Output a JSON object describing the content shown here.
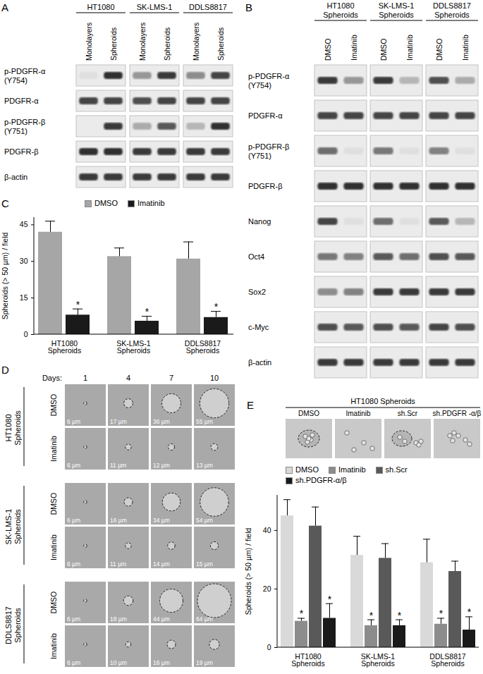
{
  "chart_data": [
    {
      "type": "bar",
      "categories": [
        "HT1080 Spheroids",
        "SK-LMS-1 Spheroids",
        "DDLS8817 Spheroids"
      ],
      "y_label": "Spheroids (> 50 µm) / field",
      "ylim": [
        0,
        48
      ],
      "yticks": [
        0,
        15,
        30,
        45
      ],
      "legend": "top",
      "series": [
        {
          "name": "DMSO",
          "color": "#a6a6a6",
          "values": [
            42,
            32,
            31
          ],
          "errors": [
            4.5,
            3.5,
            7
          ]
        },
        {
          "name": "Imatinib",
          "color": "#1a1a1a",
          "values": [
            8,
            5.5,
            7
          ],
          "errors": [
            2.5,
            2,
            2.5
          ],
          "annotations": [
            "*",
            "*",
            "*"
          ]
        }
      ]
    },
    {
      "type": "bar",
      "categories": [
        "HT1080 Spheroids",
        "SK-LMS-1 Spheroids",
        "DDLS8817 Spheroids"
      ],
      "y_label": "Spheroids (> 50 µm) / field",
      "ylim": [
        0,
        52
      ],
      "yticks": [
        0,
        20,
        40
      ],
      "legend": "top",
      "series": [
        {
          "name": "DMSO",
          "color": "#d9d9d9",
          "values": [
            45,
            31.5,
            29
          ],
          "errors": [
            5.5,
            6.5,
            8
          ]
        },
        {
          "name": "Imatinib",
          "color": "#8c8c8c",
          "values": [
            9,
            7.5,
            8
          ],
          "errors": [
            1,
            2,
            2
          ],
          "annotations": [
            "*",
            "*",
            "*"
          ]
        },
        {
          "name": "sh.Scr",
          "color": "#595959",
          "values": [
            41.5,
            30.5,
            26
          ],
          "errors": [
            6.5,
            5,
            3.5
          ]
        },
        {
          "name": "sh.PDGFR-α/β",
          "color": "#1a1a1a",
          "values": [
            10,
            7.5,
            6
          ],
          "errors": [
            5,
            2,
            4.5
          ],
          "annotations": [
            "*",
            "*",
            "*"
          ]
        }
      ]
    }
  ],
  "figure": {
    "A": {
      "letter": "A",
      "groups": [
        {
          "name": "HT1080",
          "lanes": [
            "Monolayers",
            "Spheroids"
          ]
        },
        {
          "name": "SK-LMS-1",
          "lanes": [
            "Monolayers",
            "Spheroids"
          ]
        },
        {
          "name": "DDLS8817",
          "lanes": [
            "Monolayers",
            "Spheroids"
          ]
        }
      ],
      "rows": [
        {
          "label": "p-PDGFR-α (Y754)",
          "intensity": [
            0.05,
            0.9,
            0.4,
            0.85,
            0.45,
            0.8
          ]
        },
        {
          "label": "PDGFR-α",
          "intensity": [
            0.8,
            0.8,
            0.75,
            0.8,
            0.8,
            0.8
          ]
        },
        {
          "label": "p-PDGFR-β (Y751)",
          "intensity": [
            0.0,
            0.85,
            0.3,
            0.7,
            0.25,
            0.9
          ]
        },
        {
          "label": "PDGFR-β",
          "intensity": [
            0.9,
            0.9,
            0.85,
            0.85,
            0.85,
            0.85
          ]
        },
        {
          "label": "β-actin",
          "intensity": [
            0.85,
            0.85,
            0.85,
            0.85,
            0.85,
            0.85
          ]
        }
      ]
    },
    "B": {
      "letter": "B",
      "groups": [
        {
          "name": "HT1080 Spheroids",
          "lanes": [
            "DMSO",
            "Imatinib"
          ]
        },
        {
          "name": "SK-LMS-1 Spheroids",
          "lanes": [
            "DMSO",
            "Imatinib"
          ]
        },
        {
          "name": "DDLS8817 Spheroids",
          "lanes": [
            "DMSO",
            "Imatinib"
          ]
        }
      ],
      "rows": [
        {
          "label": "p-PDGFR-α (Y754)",
          "intensity": [
            0.85,
            0.4,
            0.85,
            0.25,
            0.75,
            0.3
          ]
        },
        {
          "label": "PDGFR-α",
          "intensity": [
            0.8,
            0.8,
            0.8,
            0.8,
            0.8,
            0.8
          ]
        },
        {
          "label": "p-PDGFR-β (Y751)",
          "intensity": [
            0.6,
            0.05,
            0.55,
            0.05,
            0.5,
            0.05
          ]
        },
        {
          "label": "PDGFR-β",
          "intensity": [
            0.9,
            0.9,
            0.9,
            0.9,
            0.9,
            0.9
          ]
        },
        {
          "label": "Nanog",
          "intensity": [
            0.8,
            0.05,
            0.6,
            0.05,
            0.7,
            0.25
          ]
        },
        {
          "label": "Oct4",
          "intensity": [
            0.55,
            0.5,
            0.7,
            0.6,
            0.75,
            0.7
          ]
        },
        {
          "label": "Sox2",
          "intensity": [
            0.45,
            0.5,
            0.85,
            0.85,
            0.85,
            0.85
          ]
        },
        {
          "label": "c-Myc",
          "intensity": [
            0.75,
            0.7,
            0.75,
            0.7,
            0.8,
            0.75
          ]
        },
        {
          "label": "β-actin",
          "intensity": [
            0.85,
            0.85,
            0.85,
            0.85,
            0.85,
            0.85
          ]
        }
      ]
    },
    "C": {
      "letter": "C"
    },
    "D": {
      "letter": "D",
      "days_label": "Days:",
      "days": [
        1,
        4,
        7,
        10
      ],
      "groups": [
        {
          "name": "HT1080 Spheroids",
          "rows": [
            {
              "treatment": "DMSO",
              "diameters": [
                6,
                17,
                36,
                55
              ],
              "diameter_labels": [
                "6 µm",
                "17 µm",
                "36 µm",
                "55 µm"
              ]
            },
            {
              "treatment": "Imatinib",
              "diameters": [
                6,
                11,
                12,
                13
              ],
              "diameter_labels": [
                "6 µm",
                "11 µm",
                "12 µm",
                "13 µm"
              ]
            }
          ]
        },
        {
          "name": "SK-LMS-1 Spheroids",
          "rows": [
            {
              "treatment": "DMSO",
              "diameters": [
                6,
                16,
                34,
                54
              ],
              "diameter_labels": [
                "6 µm",
                "16 µm",
                "34 µm",
                "54 µm"
              ]
            },
            {
              "treatment": "Imatinib",
              "diameters": [
                6,
                11,
                14,
                15
              ],
              "diameter_labels": [
                "6 µm",
                "11 µm",
                "14 µm",
                "15 µm"
              ]
            }
          ]
        },
        {
          "name": "DDLS8817 Spheroids",
          "rows": [
            {
              "treatment": "DMSO",
              "diameters": [
                6,
                18,
                44,
                64
              ],
              "diameter_labels": [
                "6 µm",
                "18 µm",
                "44 µm",
                "64 µm"
              ]
            },
            {
              "treatment": "Imatinib",
              "diameters": [
                6,
                10,
                16,
                19
              ],
              "diameter_labels": [
                "6 µm",
                "10 µm",
                "16 µm",
                "19 µm"
              ]
            }
          ]
        }
      ]
    },
    "E": {
      "letter": "E",
      "title": "HT1080 Spheroids",
      "columns": [
        "DMSO",
        "Imatinib",
        "sh.Scr",
        "sh.PDGFR -α/β"
      ]
    }
  }
}
